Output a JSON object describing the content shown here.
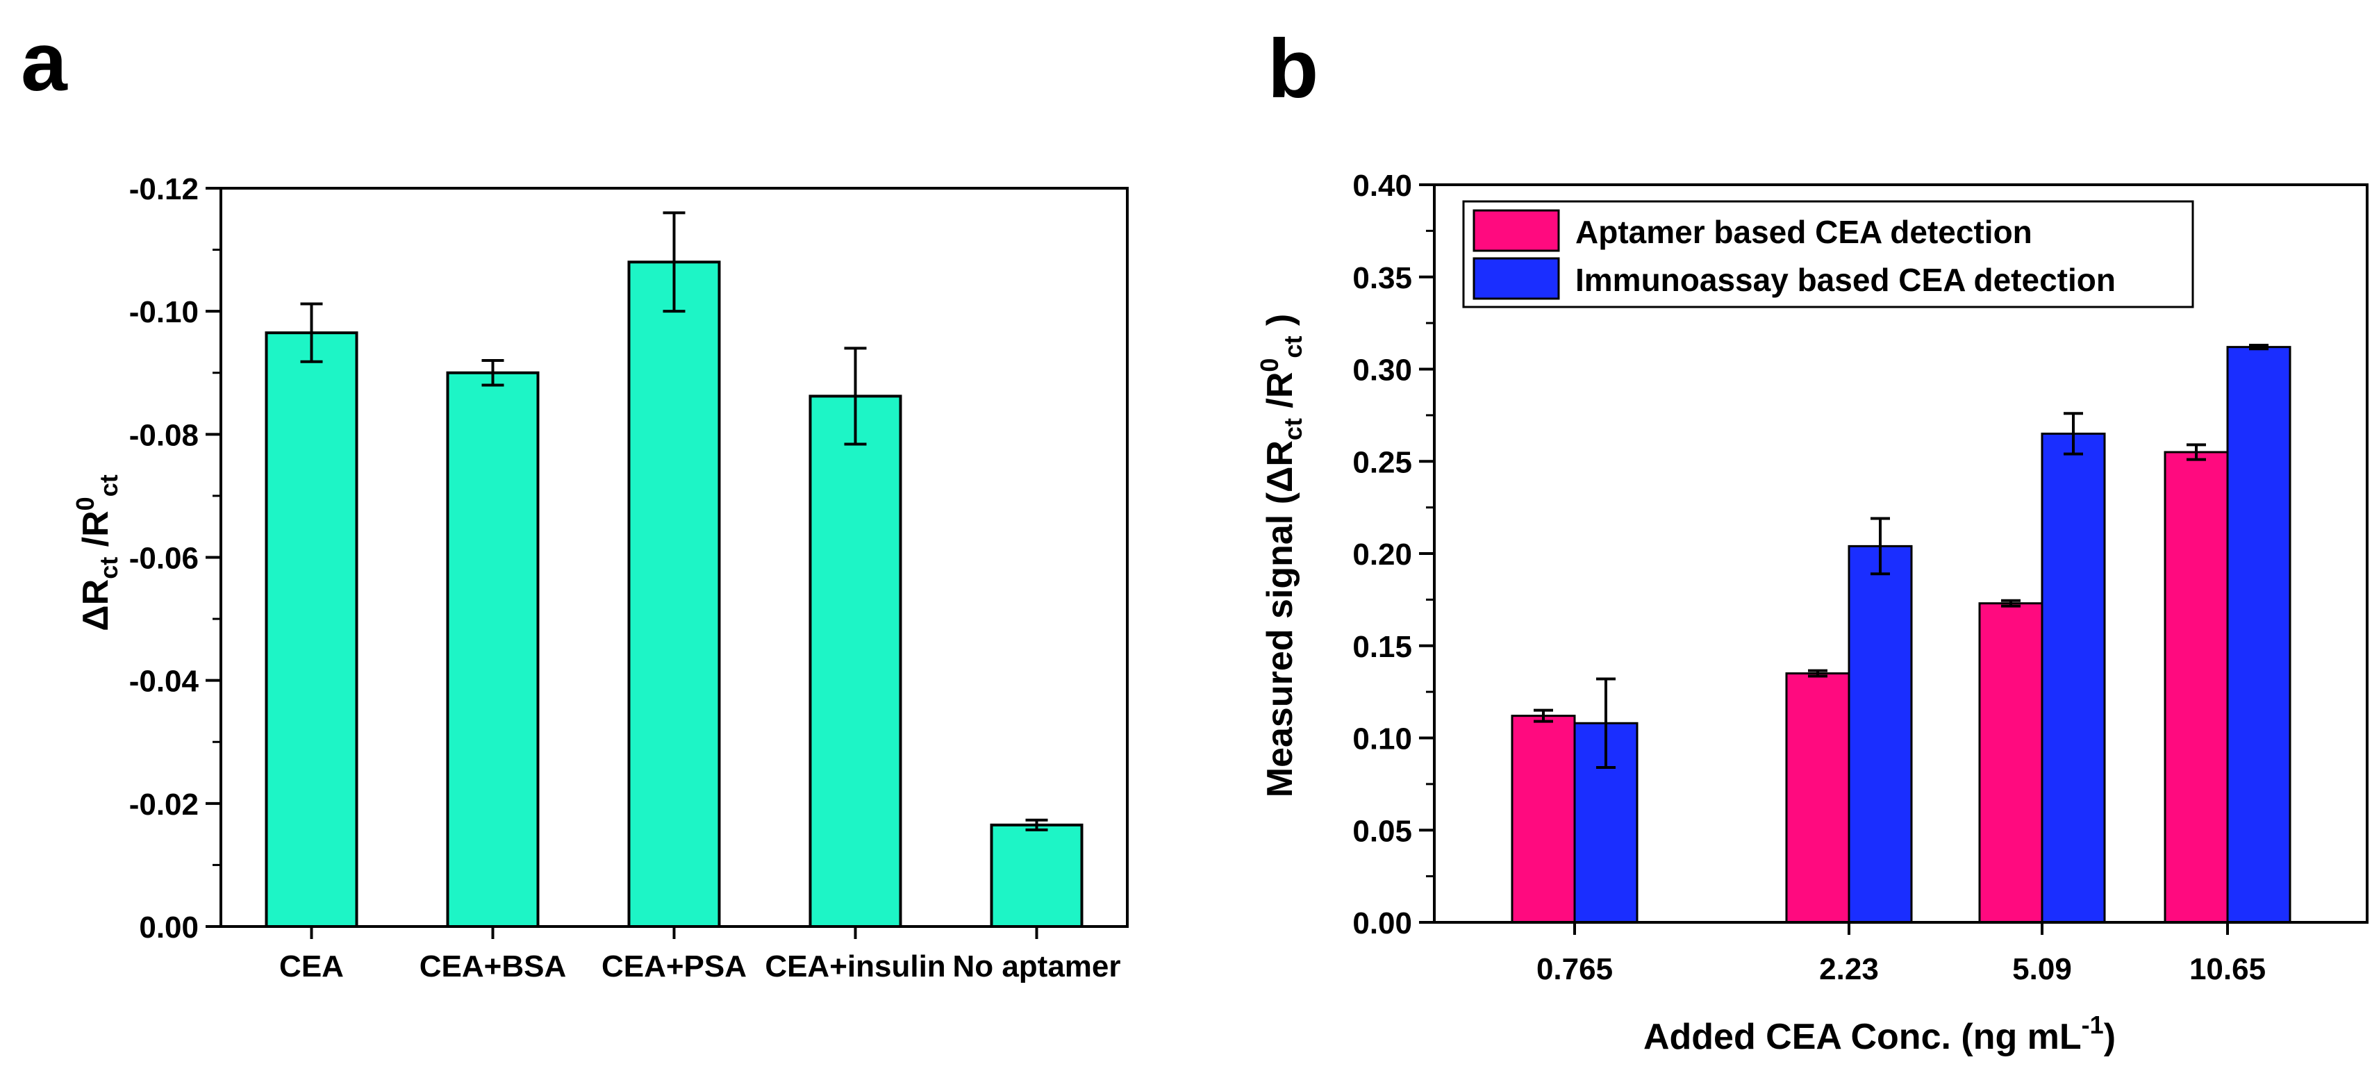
{
  "colors": {
    "panel_a_bar": "#1DF5C6",
    "aptamer": "#FF0A7F",
    "immunoassay": "#1A2EFF",
    "axis": "#000000"
  },
  "chart_data": [
    {
      "panel_label": "a",
      "type": "bar",
      "title": "",
      "categories": [
        "CEA",
        "CEA+BSA",
        "CEA+PSA",
        "CEA+insulin",
        "No aptamer"
      ],
      "values": [
        -0.0965,
        -0.09,
        -0.108,
        -0.0862,
        -0.0165
      ],
      "errors": [
        0.0047,
        0.002,
        0.008,
        0.0078,
        0.0008
      ],
      "xlabel": "",
      "ylabel": {
        "base": "ΔR",
        "sub1": "ct",
        "mid": " /R",
        "sup": "0",
        "sub2": "ct"
      },
      "ylim": [
        0.0,
        -0.12
      ],
      "yticks": [
        0.0,
        -0.02,
        -0.04,
        -0.06,
        -0.08,
        -0.1,
        -0.12
      ],
      "ytick_labels": [
        "0.00",
        "-0.02",
        "-0.04",
        "-0.06",
        "-0.08",
        "-0.10",
        "-0.12"
      ],
      "grid": false,
      "legend": null
    },
    {
      "panel_label": "b",
      "type": "bar",
      "title": "",
      "categories": [
        "0.765",
        "2.23",
        "5.09",
        "10.65"
      ],
      "series": [
        {
          "name": "Aptamer based CEA detection",
          "values": [
            0.112,
            0.135,
            0.173,
            0.255
          ],
          "errors": [
            0.003,
            0.0015,
            0.0015,
            0.004
          ]
        },
        {
          "name": "Immunoassay based CEA detection",
          "values": [
            0.108,
            0.204,
            0.265,
            0.312
          ],
          "errors": [
            0.024,
            0.015,
            0.011,
            0.001
          ]
        }
      ],
      "xlabel": {
        "base": "Added CEA Conc. (ng mL",
        "sup": "-1",
        "end": ")"
      },
      "ylabel": {
        "base": "Measured signal (ΔR",
        "sub1": "ct",
        "mid": " /R",
        "sup": "0",
        "sub2": "ct",
        "end": " )"
      },
      "ylim": [
        0.0,
        0.4
      ],
      "yticks": [
        0.0,
        0.05,
        0.1,
        0.15,
        0.2,
        0.25,
        0.3,
        0.35,
        0.4
      ],
      "ytick_labels": [
        "0.00",
        "0.05",
        "0.10",
        "0.15",
        "0.20",
        "0.25",
        "0.30",
        "0.35",
        "0.40"
      ],
      "grid": false,
      "legend": "top-left"
    }
  ]
}
